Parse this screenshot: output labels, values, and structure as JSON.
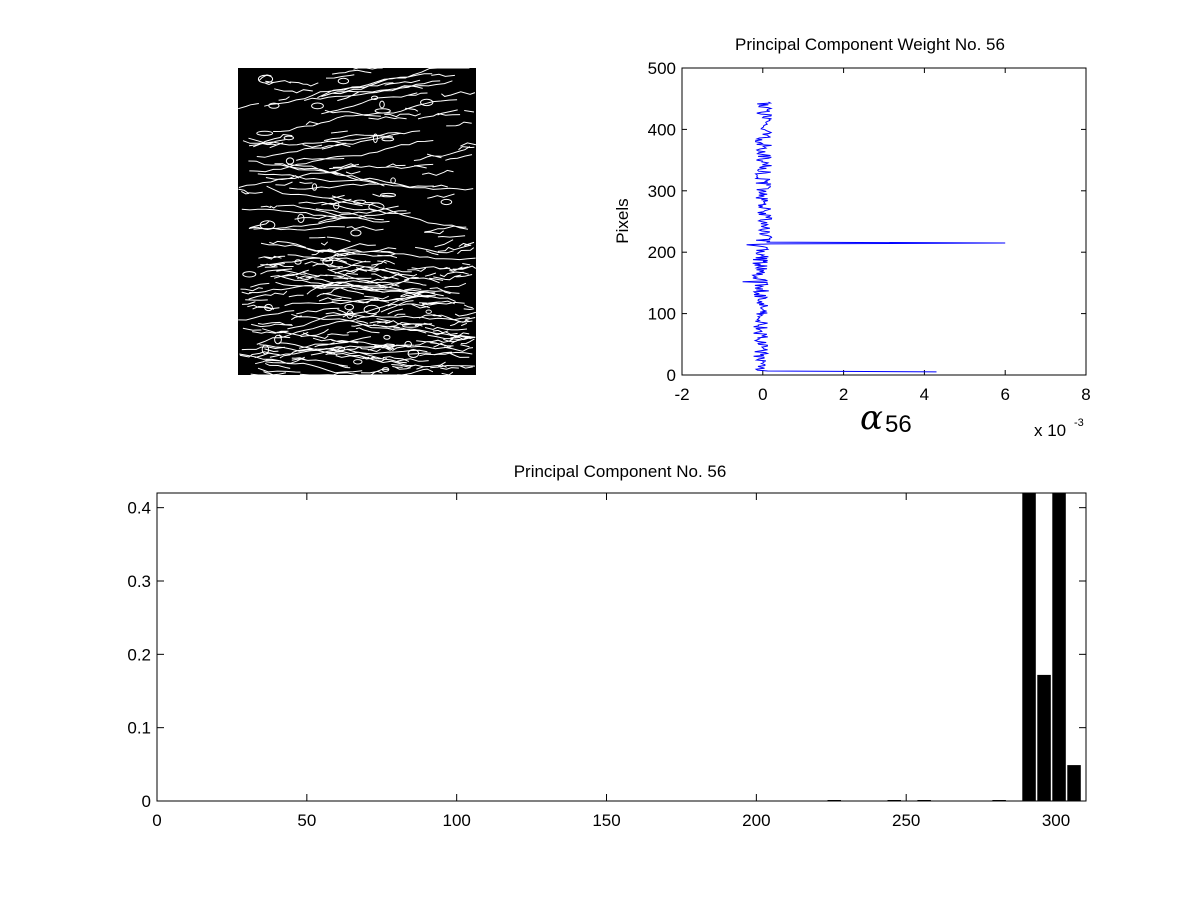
{
  "figure": {
    "background": "#ffffff"
  },
  "image_panel": {
    "description_icon": "edge-map-image",
    "background": "#000000",
    "edge_color": "#ffffff"
  },
  "chart_data": [
    {
      "type": "line",
      "orientation": "vertical-profile",
      "title": "Principal Component Weight No. 56",
      "ylabel": "Pixels",
      "xlabel_math": "α",
      "xlabel_sub": "56",
      "exponent_label_base": "x 10",
      "exponent_label_power": "-3",
      "xlim": [
        -2,
        8
      ],
      "ylim": [
        0,
        500
      ],
      "xticks": [
        -2,
        0,
        2,
        4,
        6,
        8
      ],
      "yticks": [
        0,
        100,
        200,
        300,
        400,
        500
      ],
      "line_color": "#0000ff",
      "grid": false,
      "series": [
        {
          "x_units": "1e-3",
          "points_note_y_range": [
            5,
            445
          ],
          "spikes": [
            {
              "y": 215,
              "x": 6.0
            },
            {
              "y": 5,
              "x": 4.3
            },
            {
              "y": 152,
              "x": -0.5
            },
            {
              "y": 212,
              "x": -0.4
            }
          ],
          "noise_amplitude": 0.2
        }
      ]
    },
    {
      "type": "bar",
      "title": "Principal Component No. 56",
      "xlabel": "",
      "ylabel": "",
      "xlim": [
        0,
        310
      ],
      "ylim": [
        0,
        0.42
      ],
      "xticks": [
        0,
        50,
        100,
        150,
        200,
        250,
        300
      ],
      "yticks": [
        0,
        0.1,
        0.2,
        0.3,
        0.4
      ],
      "bar_color": "#000000",
      "bar_width": 4.5,
      "grid": false,
      "bars": [
        {
          "x": 226,
          "value": 0.001
        },
        {
          "x": 246,
          "value": 0.001
        },
        {
          "x": 256,
          "value": 0.001
        },
        {
          "x": 281,
          "value": 0.001
        },
        {
          "x": 291,
          "value": 0.42
        },
        {
          "x": 296,
          "value": 0.172
        },
        {
          "x": 301,
          "value": 0.42
        },
        {
          "x": 306,
          "value": 0.049
        }
      ]
    }
  ]
}
